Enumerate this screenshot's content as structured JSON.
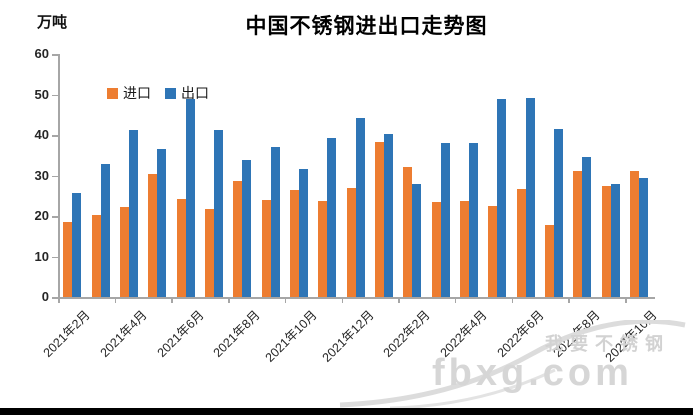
{
  "header": {
    "title": "中国不锈钢进出口走势图",
    "unit_label": "万吨"
  },
  "legend": {
    "import_label": "进口",
    "export_label": "出口"
  },
  "watermark": {
    "brand": "我要不锈钢",
    "site": "fbxg.com"
  },
  "colors": {
    "import": "#ED7D31",
    "export": "#2E75B6",
    "axis": "#a6a6a6",
    "watermark": "#d4d4d4"
  },
  "chart_data": {
    "type": "bar",
    "title": "中国不锈钢进出口走势图",
    "ylabel": "万吨",
    "xlabel": "",
    "ylim": [
      0,
      60
    ],
    "y_ticks": [
      0,
      10,
      20,
      30,
      40,
      50,
      60
    ],
    "grid": false,
    "legend_position": "top-left-inside",
    "x_label_interval": 2,
    "categories": [
      "2021年2月",
      "2021年3月",
      "2021年4月",
      "2021年5月",
      "2021年6月",
      "2021年7月",
      "2021年8月",
      "2021年9月",
      "2021年10月",
      "2021年11月",
      "2021年12月",
      "2022年1月",
      "2022年2月",
      "2022年3月",
      "2022年4月",
      "2022年5月",
      "2022年6月",
      "2022年7月",
      "2022年8月",
      "2022年9月",
      "2022年10月"
    ],
    "series": [
      {
        "name": "进口",
        "color": "#ED7D31",
        "values": [
          18.5,
          20.2,
          22.3,
          30.3,
          24.2,
          21.8,
          28.6,
          24.0,
          26.3,
          23.7,
          26.9,
          38.3,
          32.0,
          23.5,
          23.6,
          22.4,
          26.7,
          17.8,
          31.0,
          27.3,
          31.0
        ]
      },
      {
        "name": "出口",
        "color": "#2E75B6",
        "values": [
          25.8,
          32.8,
          41.2,
          36.6,
          49.0,
          41.2,
          33.9,
          37.0,
          31.7,
          39.3,
          44.2,
          40.2,
          28.0,
          38.0,
          38.0,
          48.9,
          49.2,
          41.5,
          34.5,
          27.8,
          29.5
        ]
      }
    ]
  }
}
